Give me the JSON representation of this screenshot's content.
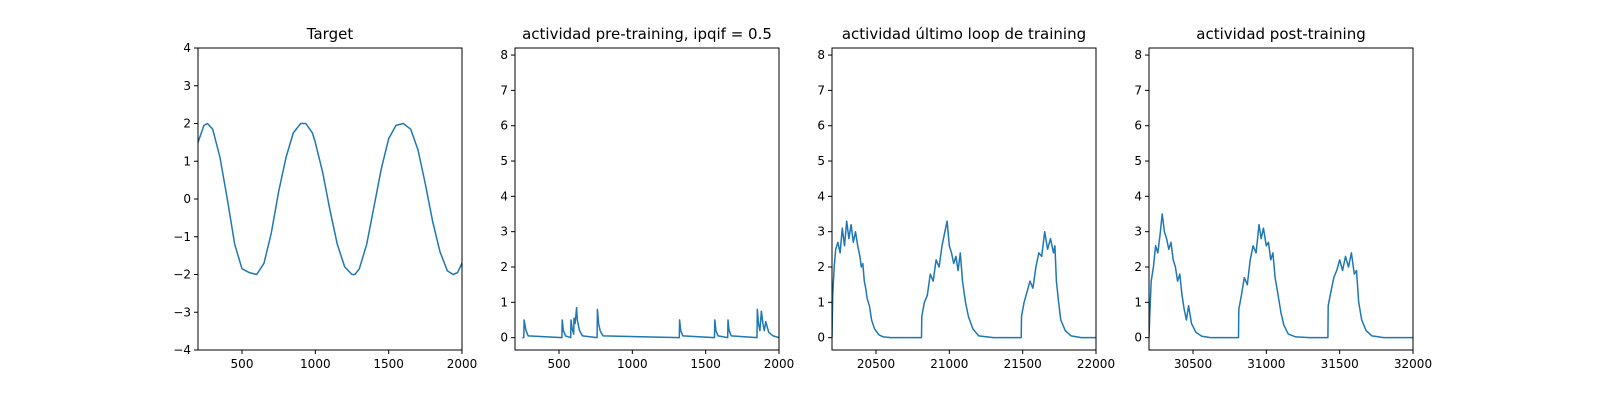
{
  "chart_data": [
    {
      "type": "line",
      "title": "Target",
      "xlim": [
        200,
        2000
      ],
      "ylim": [
        -4,
        4
      ],
      "x_ticks": [
        500,
        1000,
        1500,
        2000
      ],
      "y_ticks": [
        -4,
        -3,
        -2,
        -1,
        0,
        1,
        2,
        3,
        4
      ],
      "series": [
        {
          "color": "#1f77b4",
          "x": [
            200,
            240,
            265,
            300,
            350,
            400,
            450,
            500,
            550,
            600,
            650,
            700,
            750,
            800,
            850,
            900,
            935,
            980,
            1000,
            1050,
            1100,
            1150,
            1200,
            1250,
            1270,
            1300,
            1350,
            1400,
            1450,
            1500,
            1550,
            1600,
            1650,
            1700,
            1750,
            1800,
            1850,
            1900,
            1940,
            1970,
            2000
          ],
          "y": [
            1.5,
            1.95,
            2.0,
            1.85,
            1.1,
            0.0,
            -1.2,
            -1.85,
            -1.95,
            -2.0,
            -1.7,
            -0.9,
            0.2,
            1.1,
            1.75,
            2.0,
            2.0,
            1.75,
            1.5,
            0.7,
            -0.3,
            -1.2,
            -1.8,
            -2.0,
            -2.0,
            -1.85,
            -1.2,
            -0.2,
            0.8,
            1.6,
            1.95,
            2.0,
            1.85,
            1.3,
            0.4,
            -0.6,
            -1.4,
            -1.9,
            -2.0,
            -1.95,
            -1.7
          ]
        }
      ]
    },
    {
      "type": "line",
      "title": "actividad pre-training, ipqif = 0.5",
      "xlim": [
        200,
        2000
      ],
      "ylim": [
        -0.35,
        8.2
      ],
      "x_ticks": [
        500,
        1000,
        1500,
        2000
      ],
      "y_ticks": [
        0,
        1,
        2,
        3,
        4,
        5,
        6,
        7,
        8
      ],
      "series": [
        {
          "color": "#1f77b4",
          "x": [
            250,
            260,
            262,
            275,
            290,
            520,
            522,
            530,
            545,
            580,
            582,
            590,
            600,
            602,
            610,
            620,
            625,
            640,
            660,
            760,
            762,
            770,
            780,
            800,
            1320,
            1322,
            1330,
            1345,
            1560,
            1562,
            1570,
            1585,
            1650,
            1652,
            1660,
            1675,
            1850,
            1852,
            1860,
            1870,
            1880,
            1890,
            1900,
            1910,
            1930,
            1960,
            2000
          ],
          "y": [
            0.0,
            0.0,
            0.5,
            0.2,
            0.05,
            0.0,
            0.5,
            0.2,
            0.05,
            0.0,
            0.5,
            0.25,
            0.1,
            0.55,
            0.4,
            0.85,
            0.5,
            0.2,
            0.05,
            0.0,
            0.8,
            0.4,
            0.2,
            0.05,
            0.0,
            0.5,
            0.2,
            0.05,
            0.0,
            0.5,
            0.2,
            0.05,
            0.0,
            0.5,
            0.2,
            0.05,
            0.0,
            0.8,
            0.4,
            0.2,
            0.75,
            0.4,
            0.2,
            0.45,
            0.15,
            0.05,
            0.0
          ]
        }
      ]
    },
    {
      "type": "line",
      "title": "actividad último loop de training",
      "xlim": [
        20200,
        22000
      ],
      "ylim": [
        -0.35,
        8.2
      ],
      "x_ticks": [
        20500,
        21000,
        21500,
        22000
      ],
      "y_ticks": [
        0,
        1,
        2,
        3,
        4,
        5,
        6,
        7,
        8
      ],
      "series": [
        {
          "color": "#1f77b4",
          "x": [
            20200,
            20205,
            20215,
            20225,
            20240,
            20255,
            20270,
            20285,
            20300,
            20315,
            20330,
            20345,
            20360,
            20375,
            20390,
            20400,
            20410,
            20420,
            20430,
            20440,
            20455,
            20470,
            20490,
            20520,
            20550,
            20600,
            20650,
            20700,
            20750,
            20810,
            20812,
            20830,
            20850,
            20870,
            20890,
            20910,
            20930,
            20950,
            20970,
            20985,
            21000,
            21015,
            21030,
            21045,
            21060,
            21075,
            21090,
            21110,
            21130,
            21160,
            21200,
            21300,
            21400,
            21490,
            21492,
            21510,
            21530,
            21550,
            21570,
            21590,
            21610,
            21630,
            21650,
            21670,
            21690,
            21710,
            21720,
            21730,
            21745,
            21760,
            21790,
            21830,
            21900,
            22000
          ],
          "y": [
            0.0,
            1.2,
            2.0,
            2.5,
            2.7,
            2.4,
            3.1,
            2.6,
            3.3,
            2.8,
            3.2,
            2.7,
            3.0,
            2.6,
            2.3,
            2.0,
            2.1,
            1.6,
            1.4,
            1.1,
            0.9,
            0.5,
            0.25,
            0.08,
            0.02,
            0.0,
            0.0,
            0.0,
            0.0,
            0.0,
            0.6,
            1.0,
            1.2,
            1.8,
            1.6,
            2.2,
            2.0,
            2.6,
            3.0,
            3.3,
            2.6,
            2.4,
            2.1,
            2.3,
            1.9,
            2.4,
            1.6,
            1.0,
            0.6,
            0.25,
            0.05,
            0.0,
            0.0,
            0.0,
            0.6,
            1.0,
            1.3,
            1.6,
            1.4,
            2.0,
            2.4,
            2.3,
            3.0,
            2.5,
            2.8,
            2.4,
            2.6,
            1.6,
            1.0,
            0.5,
            0.2,
            0.05,
            0.0,
            0.0
          ]
        }
      ]
    },
    {
      "type": "line",
      "title": "actividad post-training",
      "xlim": [
        30200,
        32000
      ],
      "ylim": [
        -0.35,
        8.2
      ],
      "x_ticks": [
        30500,
        31000,
        31500,
        32000
      ],
      "y_ticks": [
        0,
        1,
        2,
        3,
        4,
        5,
        6,
        7,
        8
      ],
      "series": [
        {
          "color": "#1f77b4",
          "x": [
            30200,
            30205,
            30215,
            30230,
            30245,
            30260,
            30275,
            30290,
            30305,
            30320,
            30335,
            30350,
            30365,
            30380,
            30395,
            30410,
            30425,
            30440,
            30455,
            30470,
            30490,
            30520,
            30560,
            30620,
            30700,
            30810,
            30812,
            30830,
            30850,
            30870,
            30890,
            30910,
            30930,
            30950,
            30965,
            30980,
            31000,
            31015,
            31030,
            31045,
            31060,
            31080,
            31100,
            31120,
            31150,
            31200,
            31300,
            31420,
            31422,
            31440,
            31460,
            31480,
            31500,
            31520,
            31540,
            31560,
            31580,
            31600,
            31615,
            31630,
            31650,
            31680,
            31720,
            31800,
            32000
          ],
          "y": [
            0.0,
            0.6,
            1.6,
            2.0,
            2.6,
            2.4,
            2.9,
            3.5,
            3.0,
            2.8,
            2.5,
            2.7,
            2.2,
            2.0,
            1.6,
            1.8,
            1.2,
            0.8,
            0.5,
            0.9,
            0.4,
            0.15,
            0.04,
            0.0,
            0.0,
            0.0,
            0.8,
            1.2,
            1.7,
            1.5,
            2.2,
            2.6,
            2.4,
            3.2,
            2.8,
            3.1,
            2.6,
            2.7,
            2.2,
            2.4,
            1.7,
            1.2,
            0.7,
            0.35,
            0.1,
            0.02,
            0.0,
            0.0,
            0.9,
            1.3,
            1.7,
            1.9,
            2.2,
            1.9,
            2.3,
            2.0,
            2.4,
            1.8,
            1.9,
            1.0,
            0.5,
            0.2,
            0.05,
            0.0,
            0.0
          ]
        }
      ]
    }
  ]
}
